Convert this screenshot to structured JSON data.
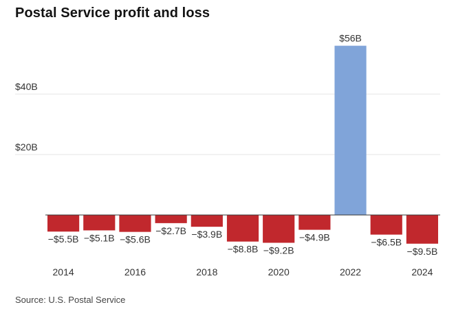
{
  "title": "Postal Service profit and loss",
  "source": "Source: U.S. Postal Service",
  "colors": {
    "negative": "#c1282d",
    "positive": "#80a4d9",
    "gridline": "#e6e6e6",
    "baseline": "#333333"
  },
  "chart_data": {
    "type": "bar",
    "title": "Postal Service profit and loss",
    "xlabel": "",
    "ylabel": "",
    "categories": [
      "2014",
      "2015",
      "2016",
      "2017",
      "2018",
      "2019",
      "2020",
      "2021",
      "2022",
      "2023",
      "2024"
    ],
    "x_tick_labels": [
      "2014",
      "2016",
      "2018",
      "2020",
      "2022",
      "2024"
    ],
    "values": [
      -5.5,
      -5.1,
      -5.6,
      -2.7,
      -3.9,
      -8.8,
      -9.2,
      -4.9,
      56,
      -6.5,
      -9.5
    ],
    "value_labels": [
      "−$5.5B",
      "−$5.1B",
      "−$5.6B",
      "−$2.7B",
      "−$3.9B",
      "−$8.8B",
      "−$9.2B",
      "−$4.9B",
      "$56B",
      "−$6.5B",
      "−$9.5B"
    ],
    "y_ticks": [
      20,
      40
    ],
    "y_tick_labels": [
      "$20B",
      "$40B"
    ],
    "ylim": [
      -11,
      56
    ],
    "unit": "billions of dollars",
    "grid": true,
    "legend": "none"
  }
}
